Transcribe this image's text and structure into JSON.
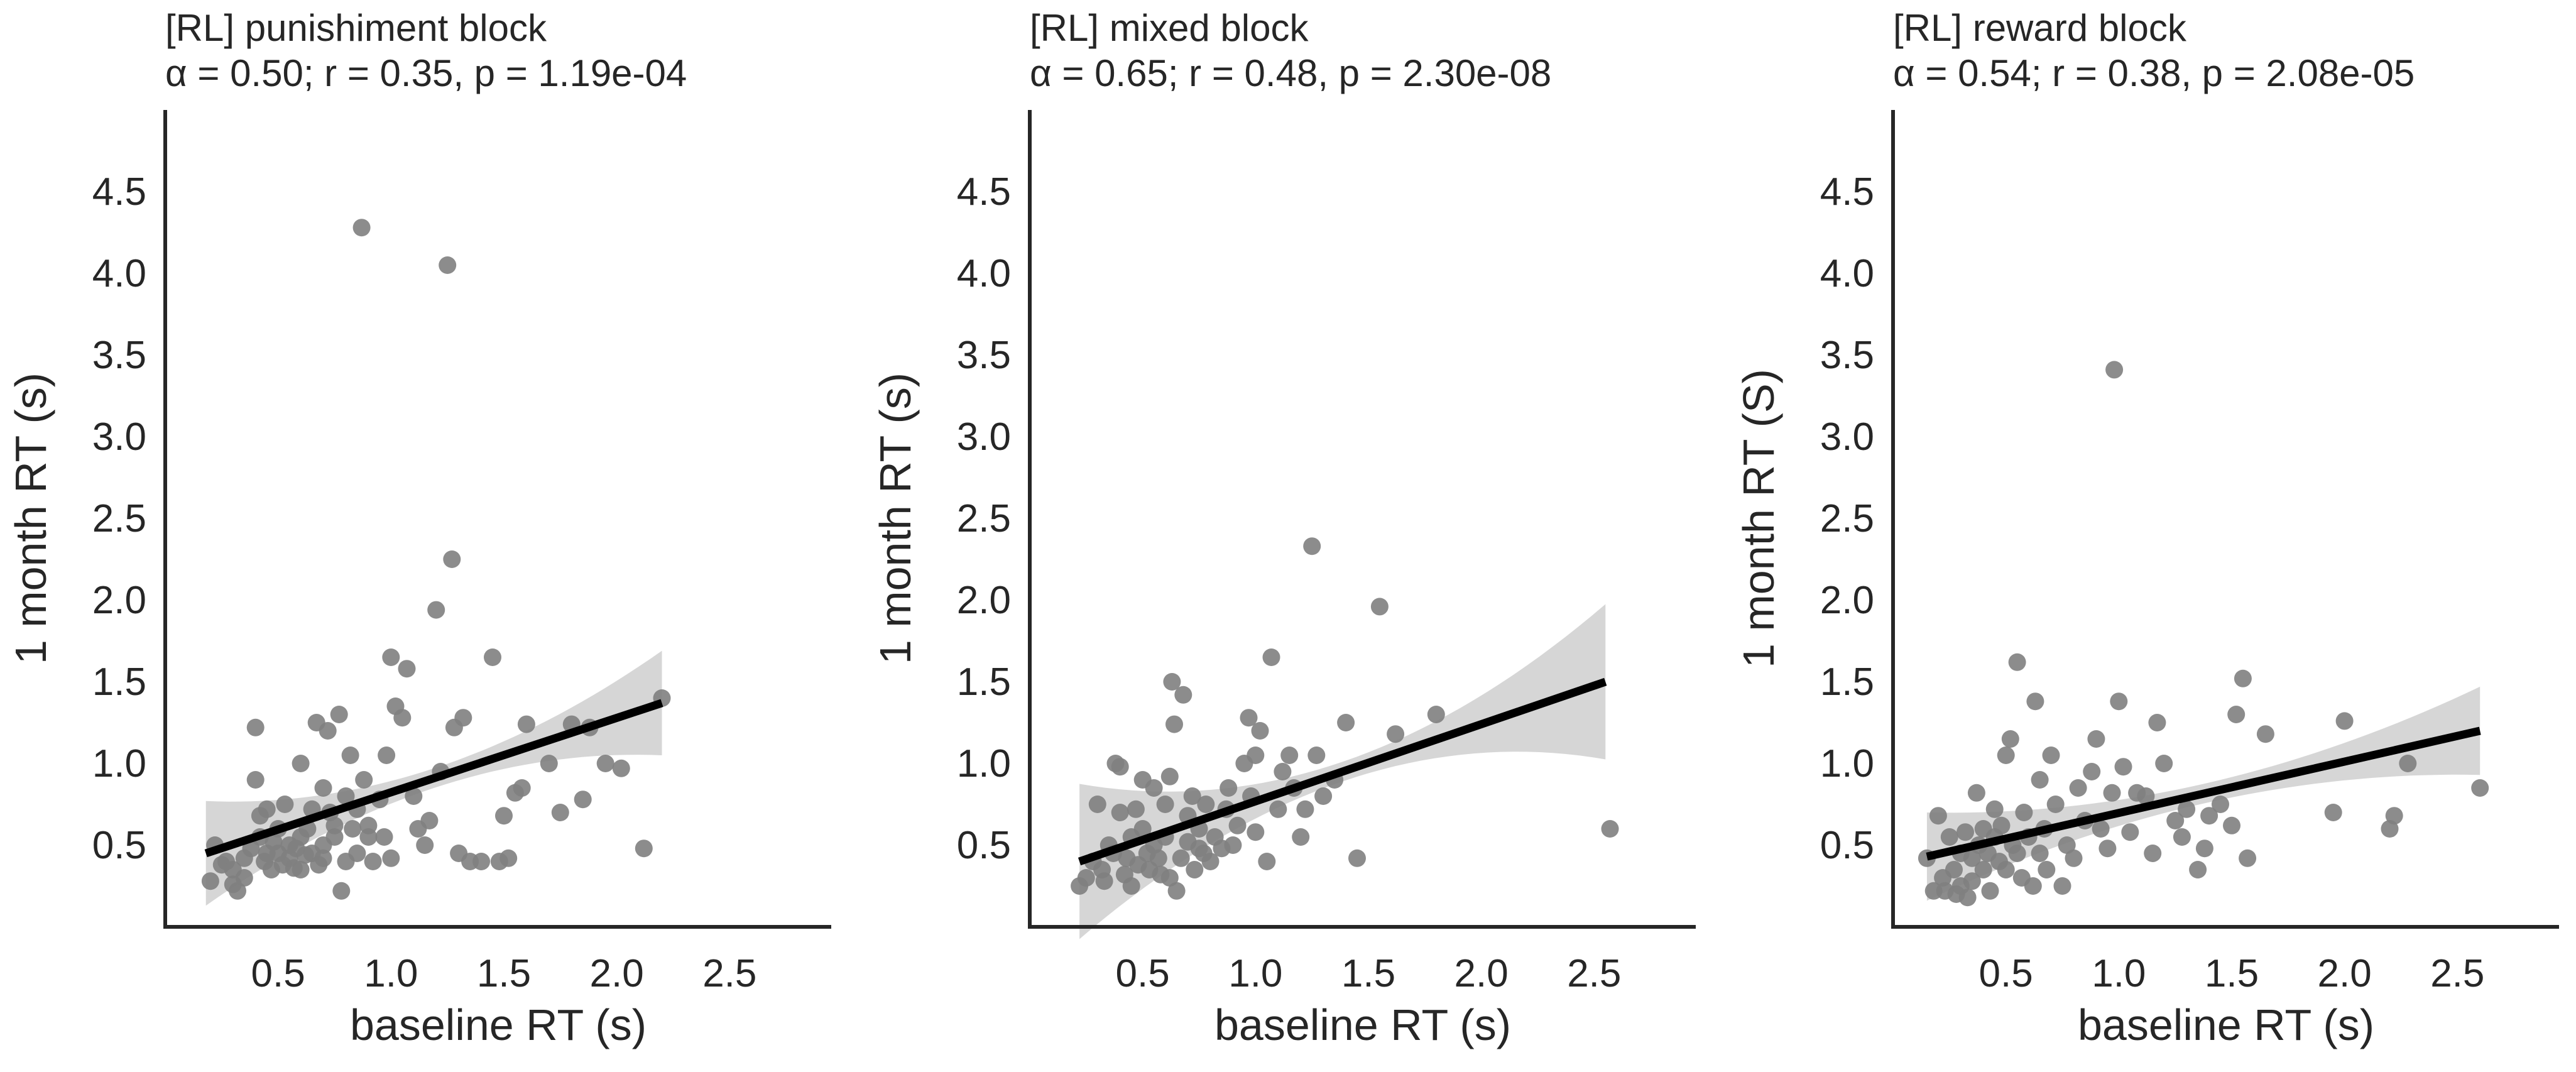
{
  "chart_data": [
    {
      "type": "scatter",
      "title_line1": "[RL] punishiment block",
      "title_line2": "α = 0.50; r = 0.35, p = 1.19e-04",
      "xlabel": "baseline RT (s)",
      "ylabel": "1 month RT (s)",
      "xlim": [
        0.0,
        2.95
      ],
      "ylim": [
        0.0,
        5.0
      ],
      "xticks": [
        "0.5",
        "1.0",
        "1.5",
        "2.0",
        "2.5"
      ],
      "yticks": [
        "0.5",
        "1.0",
        "1.5",
        "2.0",
        "2.5",
        "3.0",
        "3.5",
        "4.0",
        "4.5"
      ],
      "grid": false,
      "colors": {
        "points": "#808080",
        "fit": "#000000",
        "ci": "#c8c8c8"
      },
      "fit": {
        "x0": 0.18,
        "x1": 2.2,
        "y0": 0.45,
        "y1": 1.37,
        "ci_lower_end": 1.08,
        "ci_upper_end": 1.72,
        "ci_mid_half": 0.06
      },
      "points": [
        [
          0.2,
          0.28
        ],
        [
          0.22,
          0.5
        ],
        [
          0.25,
          0.38
        ],
        [
          0.27,
          0.4
        ],
        [
          0.3,
          0.35
        ],
        [
          0.3,
          0.26
        ],
        [
          0.32,
          0.22
        ],
        [
          0.35,
          0.3
        ],
        [
          0.35,
          0.42
        ],
        [
          0.38,
          0.48
        ],
        [
          0.4,
          0.9
        ],
        [
          0.4,
          1.22
        ],
        [
          0.42,
          0.68
        ],
        [
          0.42,
          0.55
        ],
        [
          0.44,
          0.4
        ],
        [
          0.45,
          0.45
        ],
        [
          0.45,
          0.72
        ],
        [
          0.47,
          0.35
        ],
        [
          0.48,
          0.52
        ],
        [
          0.5,
          0.6
        ],
        [
          0.5,
          0.45
        ],
        [
          0.52,
          0.38
        ],
        [
          0.53,
          0.75
        ],
        [
          0.55,
          0.5
        ],
        [
          0.55,
          0.42
        ],
        [
          0.57,
          0.36
        ],
        [
          0.58,
          0.48
        ],
        [
          0.6,
          0.55
        ],
        [
          0.6,
          0.35
        ],
        [
          0.6,
          1.0
        ],
        [
          0.62,
          0.44
        ],
        [
          0.63,
          0.6
        ],
        [
          0.65,
          0.45
        ],
        [
          0.65,
          0.72
        ],
        [
          0.67,
          1.25
        ],
        [
          0.68,
          0.38
        ],
        [
          0.7,
          0.5
        ],
        [
          0.7,
          0.85
        ],
        [
          0.7,
          0.42
        ],
        [
          0.72,
          1.2
        ],
        [
          0.73,
          0.7
        ],
        [
          0.75,
          0.55
        ],
        [
          0.75,
          0.62
        ],
        [
          0.77,
          1.3
        ],
        [
          0.78,
          0.22
        ],
        [
          0.8,
          0.4
        ],
        [
          0.8,
          0.8
        ],
        [
          0.82,
          1.05
        ],
        [
          0.83,
          0.6
        ],
        [
          0.85,
          0.45
        ],
        [
          0.85,
          0.72
        ],
        [
          0.87,
          4.28
        ],
        [
          0.88,
          0.9
        ],
        [
          0.9,
          0.55
        ],
        [
          0.9,
          0.62
        ],
        [
          0.92,
          0.4
        ],
        [
          0.95,
          0.78
        ],
        [
          0.97,
          0.55
        ],
        [
          0.98,
          1.05
        ],
        [
          1.0,
          0.42
        ],
        [
          1.0,
          1.65
        ],
        [
          1.02,
          1.35
        ],
        [
          1.05,
          1.28
        ],
        [
          1.07,
          1.58
        ],
        [
          1.1,
          0.8
        ],
        [
          1.12,
          0.6
        ],
        [
          1.15,
          0.5
        ],
        [
          1.17,
          0.65
        ],
        [
          1.2,
          1.94
        ],
        [
          1.22,
          0.95
        ],
        [
          1.25,
          4.05
        ],
        [
          1.27,
          2.25
        ],
        [
          1.28,
          1.22
        ],
        [
          1.3,
          0.45
        ],
        [
          1.32,
          1.28
        ],
        [
          1.35,
          0.4
        ],
        [
          1.4,
          0.4
        ],
        [
          1.45,
          1.65
        ],
        [
          1.48,
          0.4
        ],
        [
          1.5,
          0.68
        ],
        [
          1.52,
          0.42
        ],
        [
          1.55,
          0.82
        ],
        [
          1.58,
          0.85
        ],
        [
          1.6,
          1.24
        ],
        [
          1.7,
          1.0
        ],
        [
          1.75,
          0.7
        ],
        [
          1.8,
          1.24
        ],
        [
          1.85,
          0.78
        ],
        [
          1.88,
          1.22
        ],
        [
          1.95,
          1.0
        ],
        [
          2.02,
          0.97
        ],
        [
          2.12,
          0.48
        ],
        [
          2.2,
          1.4
        ]
      ]
    },
    {
      "type": "scatter",
      "title_line1": "[RL] mixed block",
      "title_line2": "α = 0.65; r = 0.48, p = 2.30e-08",
      "xlabel": "baseline RT (s)",
      "ylabel": "1 month RT (s)",
      "xlim": [
        0.0,
        2.95
      ],
      "ylim": [
        0.0,
        5.0
      ],
      "xticks": [
        "0.5",
        "1.0",
        "1.5",
        "2.0",
        "2.5"
      ],
      "yticks": [
        "0.5",
        "1.0",
        "1.5",
        "2.0",
        "2.5",
        "3.0",
        "3.5",
        "4.0",
        "4.5"
      ],
      "grid": false,
      "colors": {
        "points": "#808080",
        "fit": "#000000",
        "ci": "#c8c8c8"
      },
      "fit": {
        "x0": 0.22,
        "x1": 2.55,
        "y0": 0.4,
        "y1": 1.5,
        "ci_lower_end": 1.1,
        "ci_upper_end": 2.05,
        "ci_mid_half": 0.06
      },
      "points": [
        [
          0.22,
          0.25
        ],
        [
          0.25,
          0.3
        ],
        [
          0.28,
          0.4
        ],
        [
          0.3,
          0.75
        ],
        [
          0.32,
          0.35
        ],
        [
          0.33,
          0.28
        ],
        [
          0.35,
          0.5
        ],
        [
          0.37,
          0.45
        ],
        [
          0.38,
          1.0
        ],
        [
          0.4,
          0.98
        ],
        [
          0.4,
          0.7
        ],
        [
          0.42,
          0.32
        ],
        [
          0.43,
          0.42
        ],
        [
          0.45,
          0.55
        ],
        [
          0.45,
          0.25
        ],
        [
          0.47,
          0.72
        ],
        [
          0.48,
          0.38
        ],
        [
          0.5,
          0.9
        ],
        [
          0.5,
          0.6
        ],
        [
          0.52,
          0.45
        ],
        [
          0.53,
          0.35
        ],
        [
          0.55,
          0.5
        ],
        [
          0.55,
          0.85
        ],
        [
          0.57,
          0.42
        ],
        [
          0.58,
          0.32
        ],
        [
          0.6,
          0.55
        ],
        [
          0.6,
          0.75
        ],
        [
          0.62,
          0.3
        ],
        [
          0.62,
          0.92
        ],
        [
          0.63,
          1.5
        ],
        [
          0.64,
          1.24
        ],
        [
          0.65,
          0.22
        ],
        [
          0.67,
          0.42
        ],
        [
          0.68,
          1.42
        ],
        [
          0.7,
          0.52
        ],
        [
          0.7,
          0.68
        ],
        [
          0.72,
          0.8
        ],
        [
          0.73,
          0.35
        ],
        [
          0.75,
          0.48
        ],
        [
          0.75,
          0.6
        ],
        [
          0.77,
          0.45
        ],
        [
          0.78,
          0.75
        ],
        [
          0.8,
          0.4
        ],
        [
          0.82,
          0.55
        ],
        [
          0.85,
          0.48
        ],
        [
          0.87,
          0.72
        ],
        [
          0.88,
          0.85
        ],
        [
          0.9,
          0.5
        ],
        [
          0.92,
          0.62
        ],
        [
          0.95,
          1.0
        ],
        [
          0.97,
          1.28
        ],
        [
          0.98,
          0.8
        ],
        [
          1.0,
          1.05
        ],
        [
          1.0,
          0.58
        ],
        [
          1.02,
          1.2
        ],
        [
          1.05,
          0.4
        ],
        [
          1.07,
          1.65
        ],
        [
          1.1,
          0.72
        ],
        [
          1.12,
          0.95
        ],
        [
          1.15,
          1.05
        ],
        [
          1.17,
          0.85
        ],
        [
          1.2,
          0.55
        ],
        [
          1.22,
          0.72
        ],
        [
          1.25,
          2.33
        ],
        [
          1.27,
          1.05
        ],
        [
          1.3,
          0.8
        ],
        [
          1.35,
          0.9
        ],
        [
          1.4,
          1.25
        ],
        [
          1.45,
          0.42
        ],
        [
          1.55,
          1.96
        ],
        [
          1.62,
          1.18
        ],
        [
          1.8,
          1.3
        ],
        [
          2.57,
          0.6
        ]
      ]
    },
    {
      "type": "scatter",
      "title_line1": "[RL] reward block",
      "title_line2": "α = 0.54; r = 0.38, p = 2.08e-05",
      "xlabel": "baseline RT (s)",
      "ylabel": "1 month RT (S)",
      "xlim": [
        0.0,
        2.95
      ],
      "ylim": [
        0.0,
        5.0
      ],
      "xticks": [
        "0.5",
        "1.0",
        "1.5",
        "2.0",
        "2.5"
      ],
      "yticks": [
        "0.5",
        "1.0",
        "1.5",
        "2.0",
        "2.5",
        "3.0",
        "3.5",
        "4.0",
        "4.5"
      ],
      "grid": false,
      "colors": {
        "points": "#808080",
        "fit": "#000000",
        "ci": "#c8c8c8"
      },
      "fit": {
        "x0": 0.15,
        "x1": 2.6,
        "y0": 0.43,
        "y1": 1.2,
        "ci_lower_end": 0.98,
        "ci_upper_end": 1.52,
        "ci_mid_half": 0.06
      },
      "points": [
        [
          0.15,
          0.42
        ],
        [
          0.18,
          0.22
        ],
        [
          0.2,
          0.68
        ],
        [
          0.22,
          0.3
        ],
        [
          0.23,
          0.22
        ],
        [
          0.25,
          0.55
        ],
        [
          0.27,
          0.35
        ],
        [
          0.28,
          0.2
        ],
        [
          0.3,
          0.45
        ],
        [
          0.3,
          0.25
        ],
        [
          0.32,
          0.58
        ],
        [
          0.33,
          0.18
        ],
        [
          0.35,
          0.42
        ],
        [
          0.35,
          0.28
        ],
        [
          0.37,
          0.82
        ],
        [
          0.38,
          0.5
        ],
        [
          0.4,
          0.6
        ],
        [
          0.4,
          0.35
        ],
        [
          0.42,
          0.45
        ],
        [
          0.43,
          0.22
        ],
        [
          0.45,
          0.72
        ],
        [
          0.45,
          0.55
        ],
        [
          0.47,
          0.4
        ],
        [
          0.48,
          0.62
        ],
        [
          0.5,
          1.05
        ],
        [
          0.5,
          0.35
        ],
        [
          0.52,
          1.15
        ],
        [
          0.53,
          0.5
        ],
        [
          0.55,
          1.62
        ],
        [
          0.55,
          0.45
        ],
        [
          0.57,
          0.3
        ],
        [
          0.58,
          0.7
        ],
        [
          0.6,
          0.55
        ],
        [
          0.62,
          0.25
        ],
        [
          0.63,
          1.38
        ],
        [
          0.65,
          0.9
        ],
        [
          0.65,
          0.45
        ],
        [
          0.67,
          0.6
        ],
        [
          0.68,
          0.35
        ],
        [
          0.7,
          1.05
        ],
        [
          0.72,
          0.75
        ],
        [
          0.75,
          0.25
        ],
        [
          0.77,
          0.5
        ],
        [
          0.8,
          0.42
        ],
        [
          0.82,
          0.85
        ],
        [
          0.85,
          0.65
        ],
        [
          0.88,
          0.95
        ],
        [
          0.9,
          1.15
        ],
        [
          0.92,
          0.6
        ],
        [
          0.95,
          0.48
        ],
        [
          0.97,
          0.82
        ],
        [
          0.98,
          3.41
        ],
        [
          1.0,
          1.38
        ],
        [
          1.02,
          0.98
        ],
        [
          1.05,
          0.58
        ],
        [
          1.08,
          0.82
        ],
        [
          1.12,
          0.8
        ],
        [
          1.15,
          0.45
        ],
        [
          1.17,
          1.25
        ],
        [
          1.2,
          1.0
        ],
        [
          1.25,
          0.65
        ],
        [
          1.28,
          0.55
        ],
        [
          1.3,
          0.72
        ],
        [
          1.35,
          0.35
        ],
        [
          1.38,
          0.48
        ],
        [
          1.4,
          0.68
        ],
        [
          1.45,
          0.75
        ],
        [
          1.5,
          0.62
        ],
        [
          1.52,
          1.3
        ],
        [
          1.55,
          1.52
        ],
        [
          1.57,
          0.42
        ],
        [
          1.65,
          1.18
        ],
        [
          1.95,
          0.7
        ],
        [
          2.0,
          1.26
        ],
        [
          2.2,
          0.6
        ],
        [
          2.22,
          0.68
        ],
        [
          2.28,
          1.0
        ],
        [
          2.6,
          0.85
        ]
      ]
    }
  ]
}
